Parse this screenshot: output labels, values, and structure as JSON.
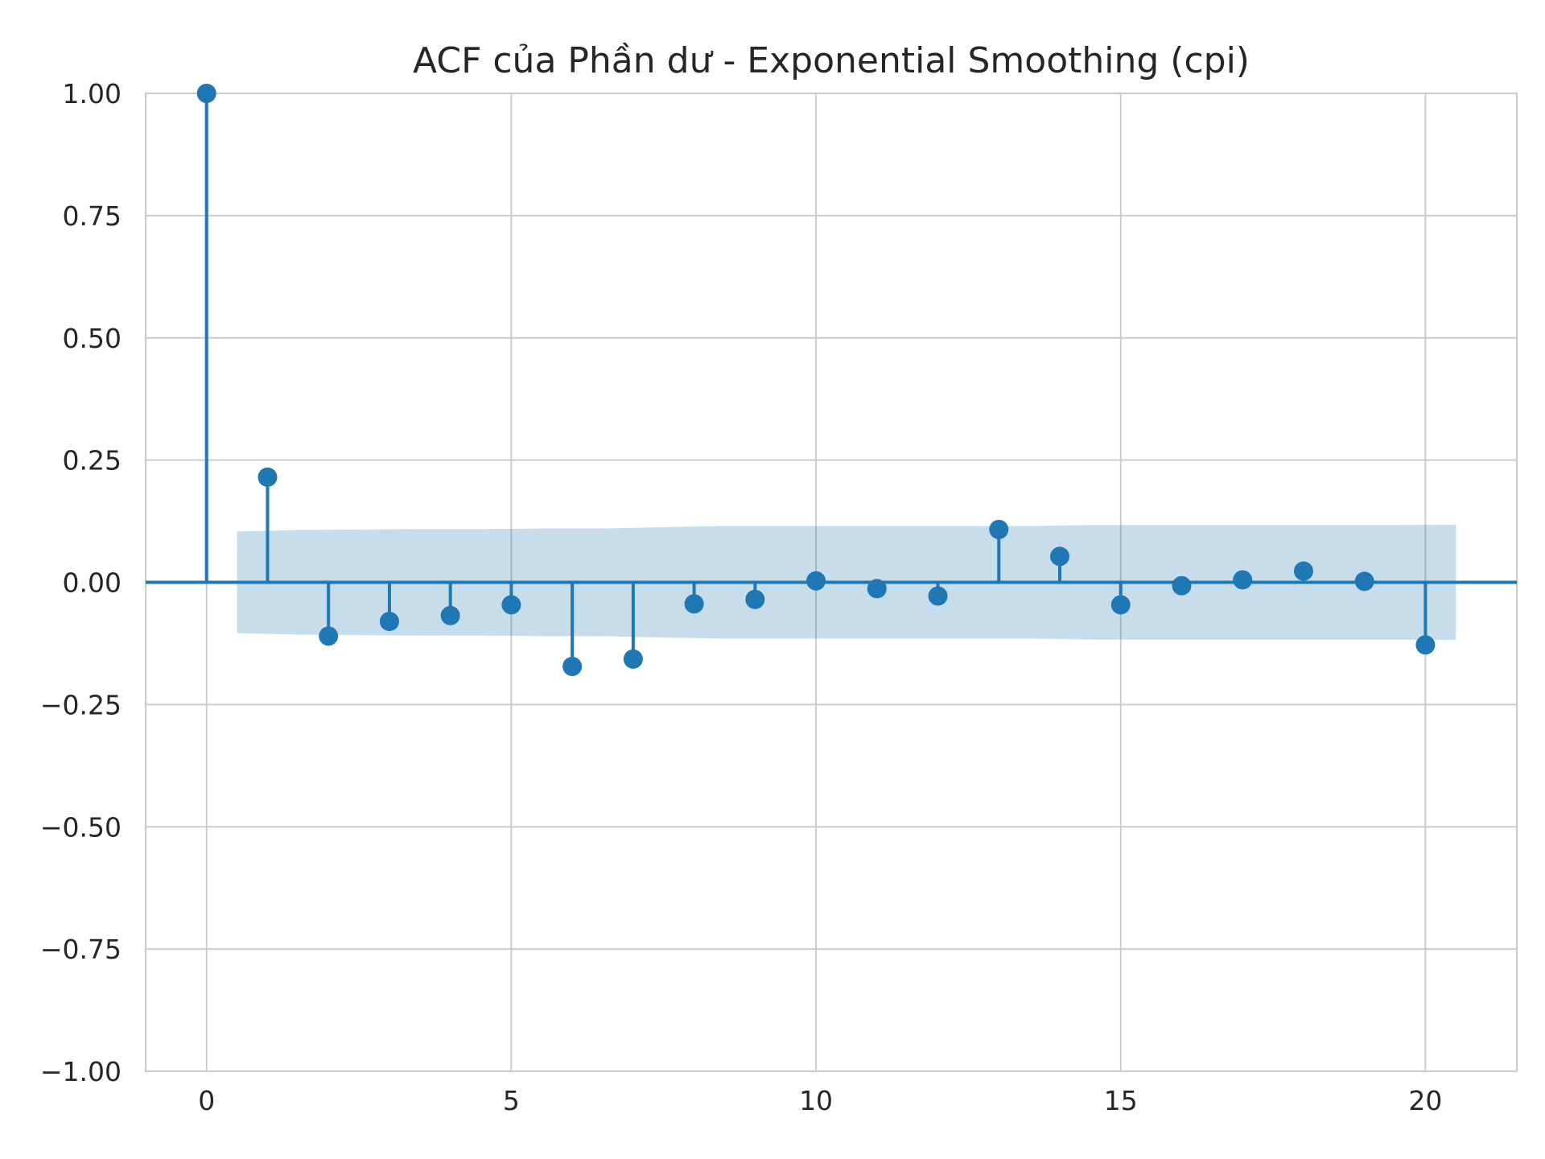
{
  "chart_data": {
    "type": "stem",
    "title": "ACF của Phần dư - Exponential Smoothing (cpi)",
    "xlabel": "",
    "ylabel": "",
    "xlim": [
      -1,
      21.5
    ],
    "ylim": [
      -1.0,
      1.0
    ],
    "x_ticks": [
      0,
      5,
      10,
      15,
      20
    ],
    "y_ticks": [
      1.0,
      0.75,
      0.5,
      0.25,
      0.0,
      -0.25,
      -0.5,
      -0.75,
      -1.0
    ],
    "x_tick_labels": [
      "0",
      "5",
      "10",
      "15",
      "20"
    ],
    "y_tick_labels": [
      "1.00",
      "0.75",
      "0.50",
      "0.25",
      "0.00",
      "−0.25",
      "−0.50",
      "−0.75",
      "−1.00"
    ],
    "grid": true,
    "lags": [
      0,
      1,
      2,
      3,
      4,
      5,
      6,
      7,
      8,
      9,
      10,
      11,
      12,
      13,
      14,
      15,
      16,
      17,
      18,
      19,
      20
    ],
    "values": [
      1.0,
      0.215,
      -0.11,
      -0.08,
      -0.068,
      -0.046,
      -0.172,
      -0.157,
      -0.044,
      -0.035,
      0.003,
      -0.013,
      -0.028,
      0.108,
      0.053,
      -0.046,
      -0.007,
      0.005,
      0.023,
      0.002,
      -0.128
    ],
    "confidence_band": {
      "x": [
        0.5,
        1.5,
        2.5,
        3.5,
        4.5,
        5.5,
        6.5,
        7.5,
        8.5,
        9.5,
        10.5,
        11.5,
        12.5,
        13.5,
        14.5,
        15.5,
        16.5,
        17.5,
        18.5,
        19.5,
        20.5
      ],
      "upper": [
        0.104,
        0.107,
        0.108,
        0.109,
        0.109,
        0.11,
        0.11,
        0.113,
        0.115,
        0.115,
        0.115,
        0.115,
        0.115,
        0.115,
        0.117,
        0.117,
        0.117,
        0.117,
        0.117,
        0.117,
        0.118
      ],
      "lower": [
        -0.104,
        -0.107,
        -0.108,
        -0.109,
        -0.109,
        -0.11,
        -0.11,
        -0.113,
        -0.115,
        -0.115,
        -0.115,
        -0.115,
        -0.115,
        -0.115,
        -0.117,
        -0.117,
        -0.117,
        -0.117,
        -0.117,
        -0.117,
        -0.118
      ]
    },
    "colors": {
      "stem": "#1f77b4",
      "band": "#1f77b4",
      "grid": "#cccccc",
      "text": "#262626"
    }
  }
}
